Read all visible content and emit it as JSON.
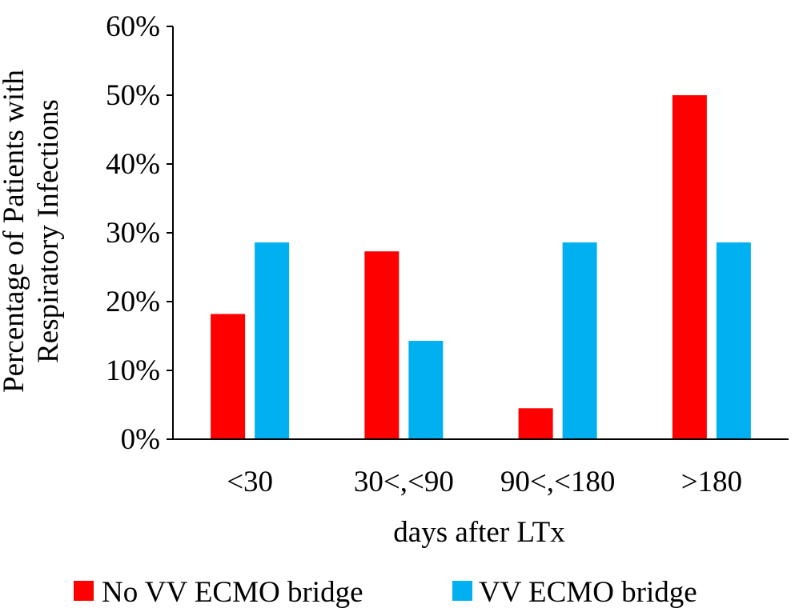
{
  "chart_data": {
    "type": "bar",
    "title": "",
    "xlabel": "days after LTx",
    "ylabel_lines": [
      "Percentage of Patients with",
      "Respiratory Infections"
    ],
    "categories": [
      "<30",
      "30<,<90",
      "90<,<180",
      ">180"
    ],
    "series": [
      {
        "name": "No VV ECMO bridge",
        "color": "#ff0000",
        "values": [
          0.182,
          0.273,
          0.045,
          0.5
        ]
      },
      {
        "name": "VV ECMO bridge",
        "color": "#00b0f0",
        "values": [
          0.286,
          0.143,
          0.286,
          0.286
        ]
      }
    ],
    "ylim": [
      0,
      0.6
    ],
    "y_ticks": [
      0,
      0.1,
      0.2,
      0.3,
      0.4,
      0.5,
      0.6
    ],
    "y_tick_labels": [
      "0%",
      "10%",
      "20%",
      "30%",
      "40%",
      "50%",
      "60%"
    ],
    "grid": false,
    "legend_position": "bottom"
  }
}
